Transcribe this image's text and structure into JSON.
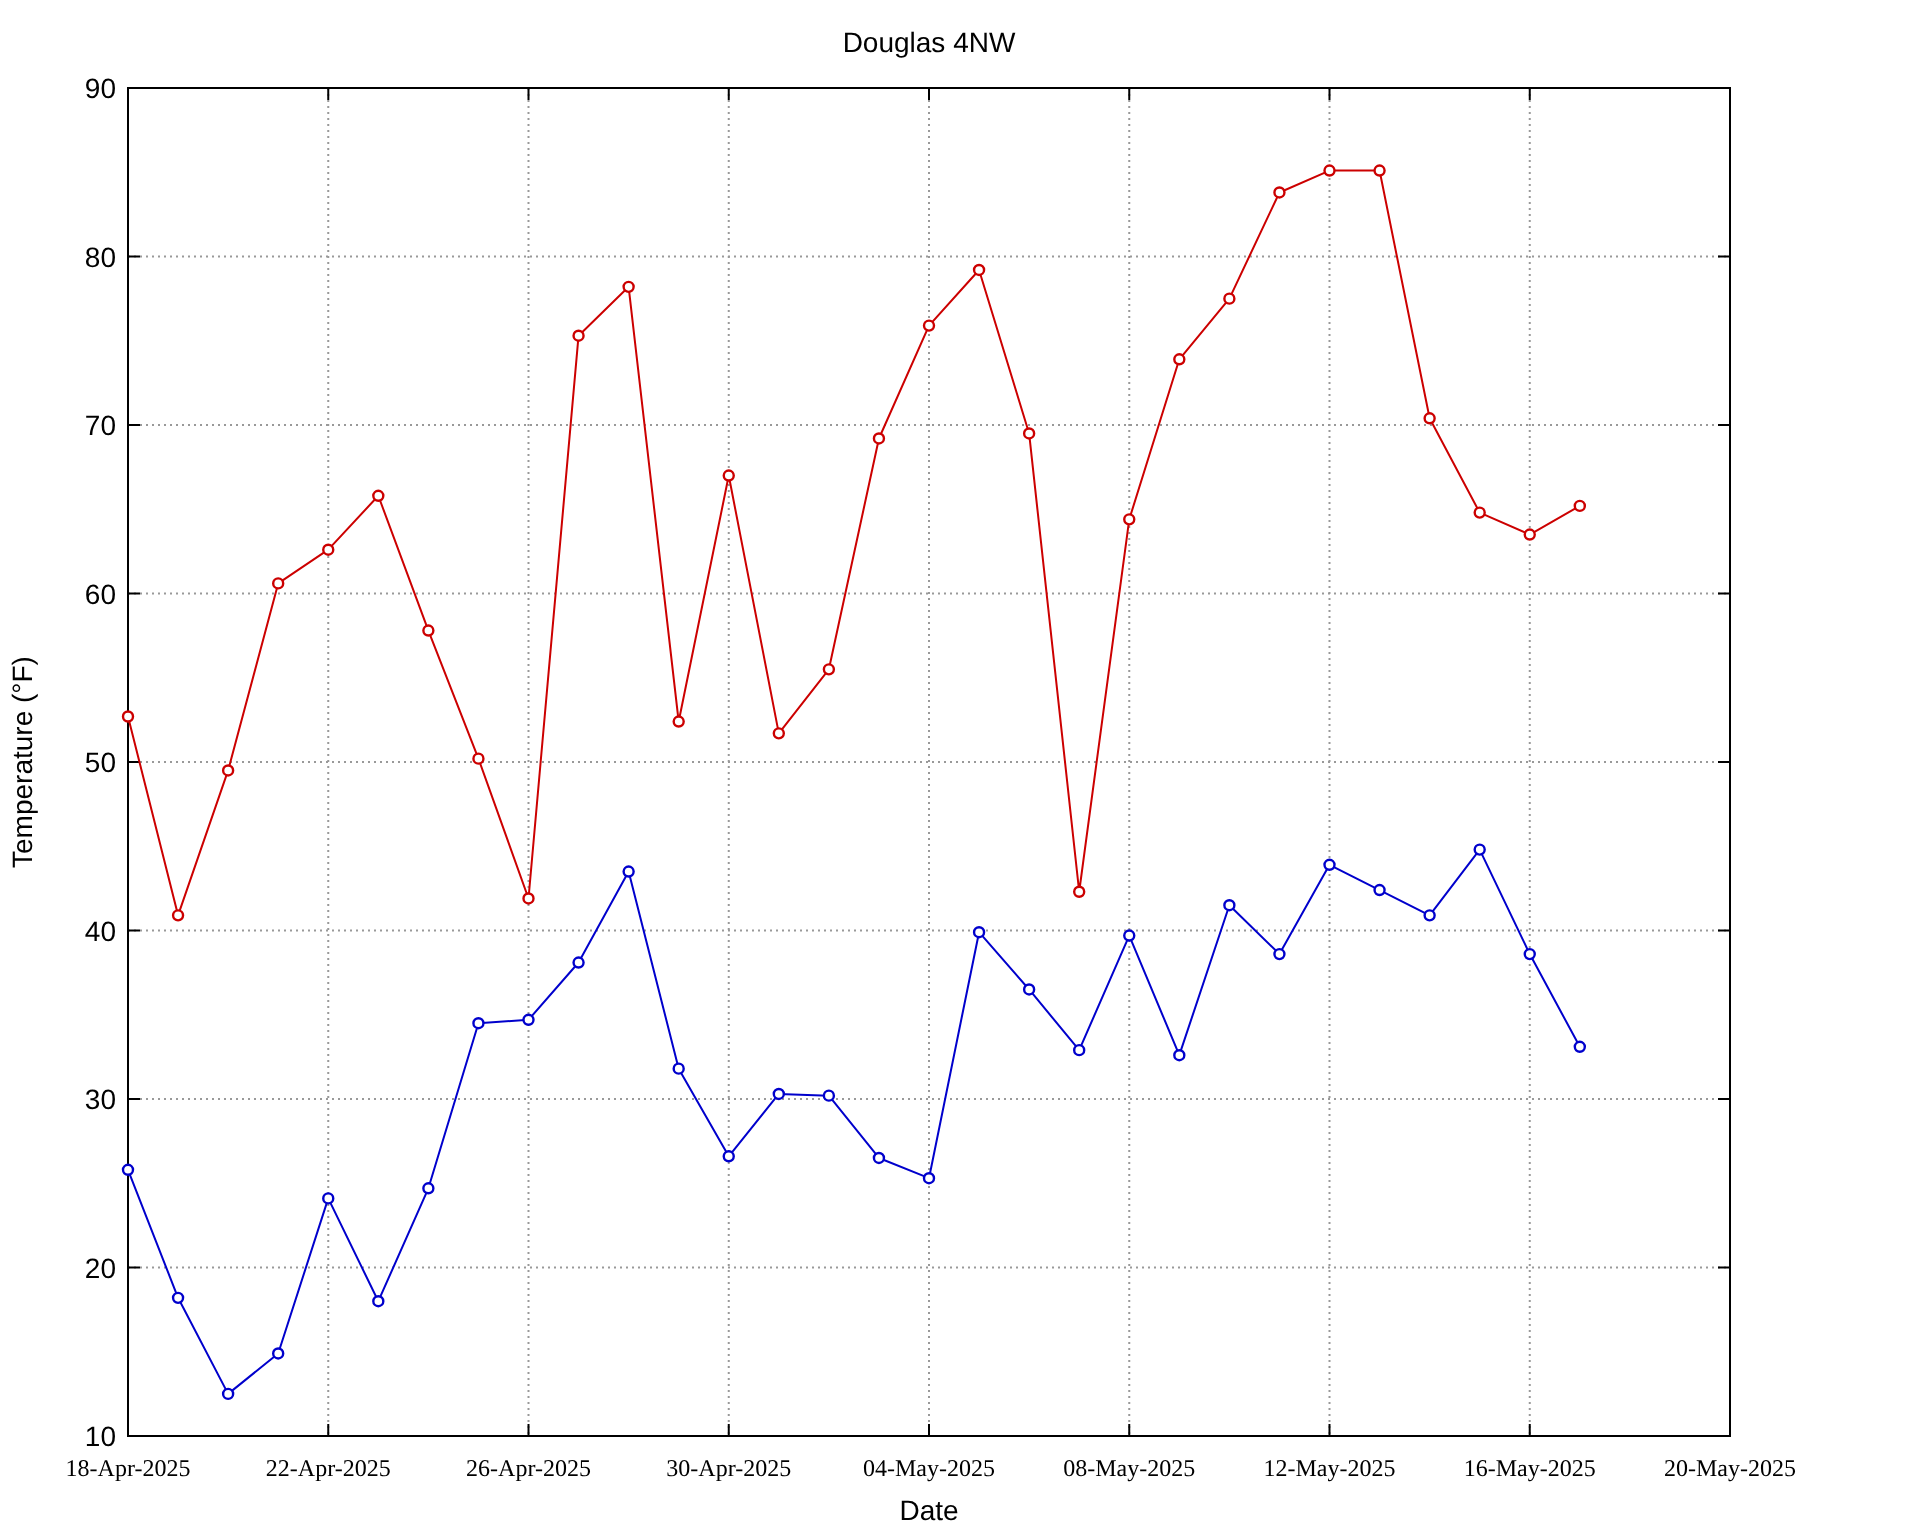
{
  "chart_data": {
    "type": "line",
    "title": "Douglas 4NW",
    "xlabel": "Date",
    "ylabel": "Temperature (°F)",
    "x": [
      "2025-04-18",
      "2025-04-19",
      "2025-04-20",
      "2025-04-21",
      "2025-04-22",
      "2025-04-23",
      "2025-04-24",
      "2025-04-25",
      "2025-04-26",
      "2025-04-27",
      "2025-04-28",
      "2025-04-29",
      "2025-04-30",
      "2025-05-01",
      "2025-05-02",
      "2025-05-03",
      "2025-05-04",
      "2025-05-05",
      "2025-05-06",
      "2025-05-07",
      "2025-05-08",
      "2025-05-09",
      "2025-05-10",
      "2025-05-11",
      "2025-05-12",
      "2025-05-13",
      "2025-05-14",
      "2025-05-15",
      "2025-05-16",
      "2025-05-17"
    ],
    "series": [
      {
        "color": "#cc0000",
        "values": [
          52.7,
          40.9,
          49.5,
          60.6,
          62.6,
          65.8,
          57.8,
          50.2,
          41.9,
          75.3,
          78.2,
          52.4,
          67.0,
          51.7,
          55.5,
          69.2,
          75.9,
          79.2,
          69.5,
          42.3,
          64.4,
          73.9,
          77.5,
          83.8,
          85.1,
          85.1,
          70.4,
          64.8,
          63.5,
          65.2
        ]
      },
      {
        "color": "#0000cc",
        "values": [
          25.8,
          18.2,
          12.5,
          14.9,
          24.1,
          18.0,
          24.7,
          34.5,
          34.7,
          38.1,
          43.5,
          31.8,
          26.6,
          30.3,
          30.2,
          26.5,
          25.3,
          39.9,
          36.5,
          32.9,
          39.7,
          32.6,
          41.5,
          38.6,
          43.9,
          42.4,
          40.9,
          44.8,
          38.6,
          33.1
        ]
      }
    ],
    "xlim": [
      "2025-04-18",
      "2025-05-20"
    ],
    "xticks": [
      {
        "value": "2025-04-18",
        "label": "18-Apr-2025"
      },
      {
        "value": "2025-04-22",
        "label": "22-Apr-2025"
      },
      {
        "value": "2025-04-26",
        "label": "26-Apr-2025"
      },
      {
        "value": "2025-04-30",
        "label": "30-Apr-2025"
      },
      {
        "value": "2025-05-04",
        "label": "04-May-2025"
      },
      {
        "value": "2025-05-08",
        "label": "08-May-2025"
      },
      {
        "value": "2025-05-12",
        "label": "12-May-2025"
      },
      {
        "value": "2025-05-16",
        "label": "16-May-2025"
      },
      {
        "value": "2025-05-20",
        "label": "20-May-2025"
      }
    ],
    "ylim": [
      10,
      90
    ],
    "yticks": [
      10,
      20,
      30,
      40,
      50,
      60,
      70,
      80,
      90
    ],
    "grid": true,
    "marker": "circle",
    "line_style": "solid"
  }
}
